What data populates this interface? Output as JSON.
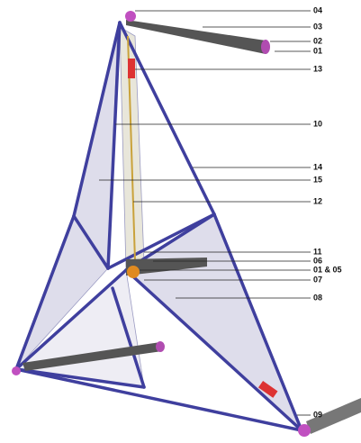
{
  "callouts": [
    "04",
    "03",
    "02",
    "01",
    "13",
    "10",
    "14",
    "15",
    "12",
    "11",
    "06",
    "01 & 05",
    "07",
    "08",
    "09"
  ]
}
